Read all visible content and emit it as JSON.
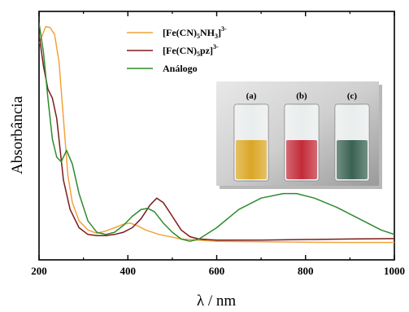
{
  "chart_data": {
    "type": "line",
    "xlabel": "λ / nm",
    "ylabel": "Absorbância",
    "xlim": [
      200,
      1000
    ],
    "xticks": [
      "200",
      "400",
      "600",
      "800",
      "1000"
    ],
    "y_tick_labels_shown": false,
    "grid": false,
    "legend_position": "top-center",
    "series": [
      {
        "name": "[Fe(CN)5NH3]3-",
        "legend": {
          "base": "[Fe(CN)",
          "s1": "5",
          "mid": "NH",
          "s2": "3",
          "end": "]",
          "sup": "3-"
        },
        "color": "#f2a33a",
        "x": [
          200,
          215,
          225,
          235,
          245,
          255,
          265,
          275,
          290,
          310,
          330,
          350,
          370,
          390,
          405,
          420,
          440,
          470,
          520,
          600,
          700,
          800,
          900,
          1000
        ],
        "y": [
          0.88,
          0.955,
          0.95,
          0.92,
          0.8,
          0.55,
          0.3,
          0.18,
          0.1,
          0.06,
          0.045,
          0.055,
          0.07,
          0.085,
          0.09,
          0.08,
          0.06,
          0.04,
          0.02,
          0.01,
          0.008,
          0.006,
          0.005,
          0.005
        ]
      },
      {
        "name": "[Fe(CN)5pz]3-",
        "legend": {
          "base": "[Fe(CN)",
          "s1": "5",
          "mid": "pz",
          "s2": "",
          "end": "]",
          "sup": "3-"
        },
        "color": "#7a1c1c",
        "x": [
          200,
          210,
          220,
          230,
          240,
          255,
          270,
          290,
          310,
          330,
          350,
          370,
          390,
          410,
          430,
          450,
          465,
          480,
          500,
          520,
          540,
          560,
          600,
          700,
          800,
          900,
          1000
        ],
        "y": [
          0.92,
          0.78,
          0.68,
          0.64,
          0.55,
          0.28,
          0.15,
          0.07,
          0.04,
          0.035,
          0.035,
          0.04,
          0.05,
          0.07,
          0.11,
          0.17,
          0.2,
          0.18,
          0.12,
          0.06,
          0.03,
          0.02,
          0.015,
          0.015,
          0.018,
          0.02,
          0.022
        ]
      },
      {
        "name": "Análogo",
        "legend": {
          "base": "Análogo",
          "s1": "",
          "mid": "",
          "s2": "",
          "end": "",
          "sup": ""
        },
        "color": "#2e8b2e",
        "x": [
          200,
          210,
          220,
          230,
          240,
          250,
          262,
          275,
          290,
          310,
          330,
          350,
          370,
          390,
          410,
          430,
          445,
          460,
          480,
          500,
          520,
          540,
          560,
          600,
          650,
          700,
          750,
          780,
          820,
          870,
          920,
          970,
          1000
        ],
        "y": [
          0.97,
          0.84,
          0.64,
          0.46,
          0.38,
          0.36,
          0.41,
          0.35,
          0.22,
          0.1,
          0.05,
          0.04,
          0.05,
          0.08,
          0.12,
          0.15,
          0.155,
          0.14,
          0.09,
          0.05,
          0.02,
          0.01,
          0.02,
          0.07,
          0.15,
          0.2,
          0.22,
          0.22,
          0.2,
          0.16,
          0.11,
          0.06,
          0.04
        ]
      }
    ]
  },
  "inset": {
    "vials": [
      {
        "label": "(a)",
        "color": "#d9a21a"
      },
      {
        "label": "(b)",
        "color": "#c0202e"
      },
      {
        "label": "(c)",
        "color": "#2f5a4a"
      }
    ]
  }
}
